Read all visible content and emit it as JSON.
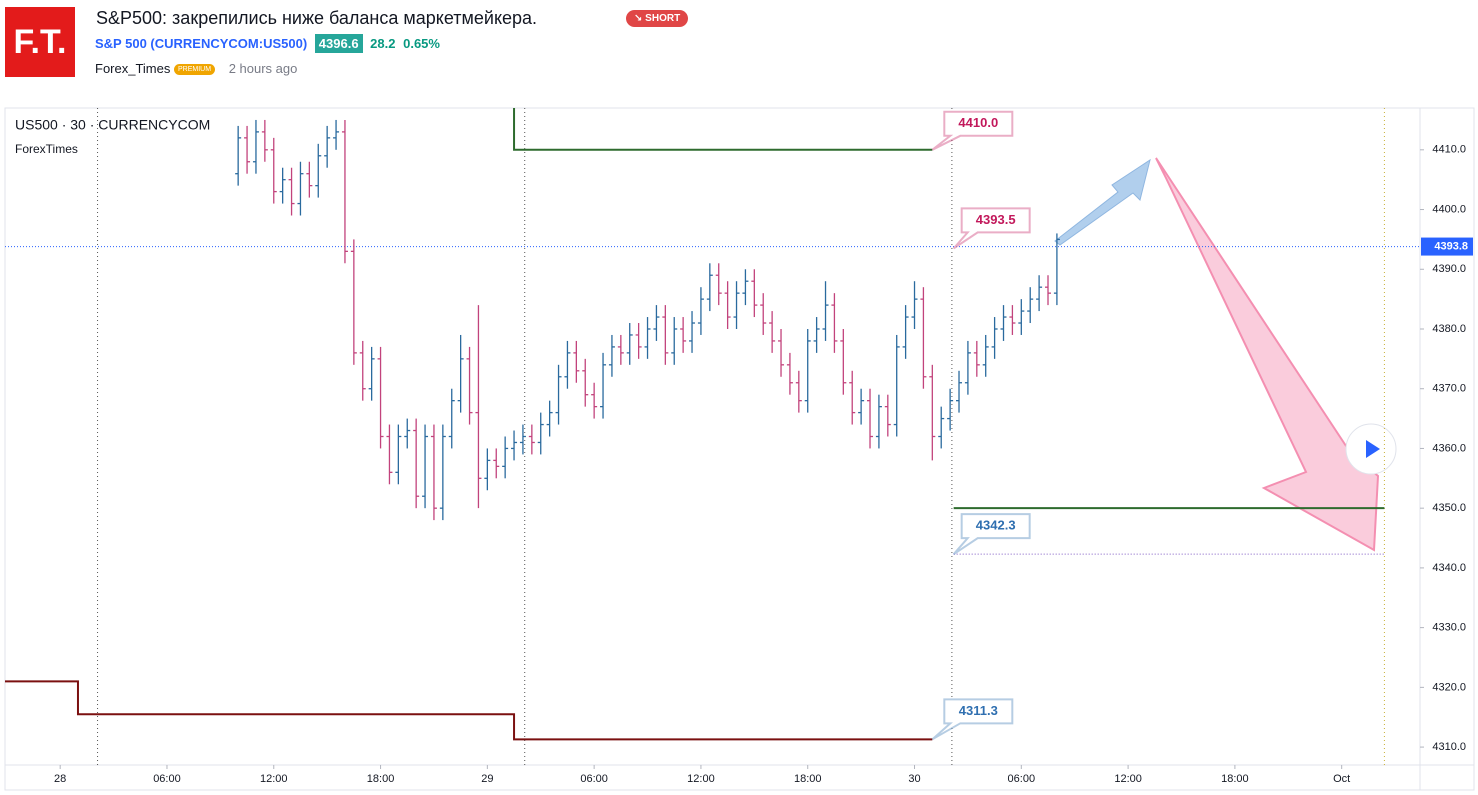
{
  "header": {
    "logo": "F.T.",
    "title": "S&P500: закрепились ниже баланса маркетмейкера.",
    "badge": "SHORT",
    "symbol": "S&P 500 (CURRENCYCOM:US500)",
    "price": "4396.6",
    "change": "28.2",
    "change_pct": "0.65%",
    "author": "Forex_Times",
    "author_badge": "PREMIUM",
    "time": "2 hours ago"
  },
  "chart_data": {
    "type": "ohlc",
    "title": "US500 · 30 · CURRENCYCOM",
    "subtitle": "ForexTimes",
    "up_color": "#2a6a9e",
    "down_color": "#c2437c",
    "xlim": [
      -3.1,
      76.4
    ],
    "ylim": [
      4307,
      4417
    ],
    "xticks": [
      {
        "value": 0,
        "label": "28"
      },
      {
        "value": 6,
        "label": "06:00"
      },
      {
        "value": 12,
        "label": "12:00"
      },
      {
        "value": 18,
        "label": "18:00"
      },
      {
        "value": 24,
        "label": "29"
      },
      {
        "value": 30,
        "label": "06:00"
      },
      {
        "value": 36,
        "label": "12:00"
      },
      {
        "value": 42,
        "label": "18:00"
      },
      {
        "value": 48,
        "label": "30"
      },
      {
        "value": 54,
        "label": "06:00"
      },
      {
        "value": 60,
        "label": "12:00"
      },
      {
        "value": 66,
        "label": "18:00"
      },
      {
        "value": 72,
        "label": "Oct"
      }
    ],
    "yticks": [
      {
        "value": 4310,
        "label": "4310.0"
      },
      {
        "value": 4320,
        "label": "4320.0"
      },
      {
        "value": 4330,
        "label": "4330.0"
      },
      {
        "value": 4340,
        "label": "4340.0"
      },
      {
        "value": 4350,
        "label": "4350.0"
      },
      {
        "value": 4360,
        "label": "4360.0"
      },
      {
        "value": 4370,
        "label": "4370.0"
      },
      {
        "value": 4380,
        "label": "4380.0"
      },
      {
        "value": 4390,
        "label": "4390.0"
      },
      {
        "value": 4400,
        "label": "4400.0"
      },
      {
        "value": 4410,
        "label": "4410.0"
      }
    ],
    "x": [
      10,
      10.5,
      11,
      11.5,
      12,
      12.5,
      13,
      13.5,
      14,
      14.5,
      15,
      15.5,
      16,
      16.5,
      17,
      17.5,
      18,
      18.5,
      19,
      19.5,
      20,
      20.5,
      21,
      21.5,
      22,
      22.5,
      23,
      23.5,
      24,
      24.5,
      25,
      25.5,
      26,
      26.5,
      27,
      27.5,
      28,
      28.5,
      29,
      29.5,
      30,
      30.5,
      31,
      31.5,
      32,
      32.5,
      33,
      33.5,
      34,
      34.5,
      35,
      35.5,
      36,
      36.5,
      37,
      37.5,
      38,
      38.5,
      39,
      39.5,
      40,
      40.5,
      41,
      41.5,
      42,
      42.5,
      43,
      43.5,
      44,
      44.5,
      45,
      45.5,
      46,
      46.5,
      47,
      47.5,
      48,
      48.5,
      49,
      49.5,
      50,
      50.5,
      51,
      51.5,
      52,
      52.5,
      53,
      53.5,
      54,
      54.5,
      55,
      55.5,
      56
    ],
    "open": [
      4406,
      4412,
      4408,
      4413,
      4410,
      4403,
      4405,
      4401,
      4406,
      4404,
      4409,
      4412,
      4413,
      4393,
      4376,
      4370,
      4375,
      4362,
      4356,
      4362,
      4363,
      4352,
      4362,
      4350,
      4362,
      4368,
      4375,
      4366,
      4355,
      4358,
      4357,
      4360,
      4361,
      4362,
      4361,
      4364,
      4366,
      4372,
      4376,
      4373,
      4369,
      4367,
      4374,
      4377,
      4376,
      4379,
      4377,
      4380,
      4382,
      4376,
      4380,
      4378,
      4381,
      4385,
      4389,
      4386,
      4382,
      4386,
      4388,
      4384,
      4381,
      4378,
      4374,
      4371,
      4368,
      4378,
      4380,
      4384,
      4378,
      4371,
      4366,
      4368,
      4362,
      4367,
      4364,
      4377,
      4382,
      4385,
      4372,
      4362,
      4365,
      4368,
      4371,
      4376,
      4374,
      4377,
      4380,
      4382,
      4381,
      4383,
      4385,
      4387,
      4386
    ],
    "high": [
      4414,
      4414,
      4415,
      4415,
      4412,
      4407,
      4407,
      4408,
      4408,
      4411,
      4414,
      4415,
      4415,
      4395,
      4378,
      4377,
      4377,
      4364,
      4364,
      4365,
      4365,
      4364,
      4364,
      4364,
      4370,
      4379,
      4377,
      4384,
      4360,
      4360,
      4362,
      4363,
      4364,
      4364,
      4366,
      4368,
      4374,
      4378,
      4378,
      4375,
      4371,
      4376,
      4379,
      4379,
      4381,
      4381,
      4382,
      4384,
      4384,
      4382,
      4382,
      4383,
      4387,
      4391,
      4391,
      4388,
      4388,
      4390,
      4390,
      4386,
      4383,
      4380,
      4376,
      4373,
      4380,
      4382,
      4388,
      4386,
      4380,
      4373,
      4370,
      4370,
      4369,
      4369,
      4379,
      4384,
      4388,
      4387,
      4374,
      4367,
      4370,
      4373,
      4378,
      4378,
      4379,
      4382,
      4384,
      4384,
      4385,
      4387,
      4389,
      4389,
      4396
    ],
    "low": [
      4404,
      4406,
      4406,
      4408,
      4401,
      4401,
      4399,
      4399,
      4402,
      4402,
      4407,
      4410,
      4391,
      4374,
      4368,
      4368,
      4360,
      4354,
      4354,
      4360,
      4350,
      4350,
      4348,
      4348,
      4360,
      4366,
      4364,
      4350,
      4353,
      4355,
      4355,
      4358,
      4359,
      4359,
      4359,
      4362,
      4364,
      4370,
      4371,
      4367,
      4365,
      4365,
      4372,
      4374,
      4374,
      4375,
      4375,
      4378,
      4374,
      4374,
      4376,
      4376,
      4379,
      4383,
      4384,
      4380,
      4380,
      4384,
      4382,
      4379,
      4376,
      4372,
      4369,
      4366,
      4366,
      4376,
      4378,
      4376,
      4369,
      4364,
      4364,
      4360,
      4360,
      4362,
      4362,
      4375,
      4380,
      4370,
      4358,
      4360,
      4363,
      4366,
      4369,
      4372,
      4372,
      4375,
      4378,
      4379,
      4379,
      4381,
      4383,
      4384,
      4384
    ],
    "close": [
      4412,
      4408,
      4413,
      4410,
      4403,
      4405,
      4401,
      4406,
      4404,
      4409,
      4412,
      4413,
      4393,
      4376,
      4370,
      4375,
      4362,
      4356,
      4362,
      4363,
      4352,
      4362,
      4350,
      4362,
      4368,
      4375,
      4366,
      4355,
      4358,
      4357,
      4360,
      4361,
      4362,
      4361,
      4364,
      4366,
      4372,
      4376,
      4373,
      4369,
      4367,
      4374,
      4377,
      4376,
      4379,
      4377,
      4380,
      4382,
      4376,
      4380,
      4378,
      4381,
      4385,
      4389,
      4386,
      4382,
      4386,
      4388,
      4384,
      4381,
      4378,
      4374,
      4371,
      4368,
      4378,
      4380,
      4384,
      4378,
      4371,
      4366,
      4368,
      4362,
      4367,
      4364,
      4377,
      4382,
      4385,
      4372,
      4362,
      4365,
      4368,
      4371,
      4376,
      4374,
      4377,
      4380,
      4382,
      4381,
      4383,
      4385,
      4387,
      4386,
      4395
    ],
    "lines": [
      {
        "x": [
          -3.1,
          1,
          1,
          25.5,
          25.5,
          49
        ],
        "values": [
          4321,
          4321,
          4315.5,
          4315.5,
          4311.3,
          4311.3
        ],
        "color": "#7b1010"
      },
      {
        "x": [
          25.5,
          25.5,
          49
        ],
        "values": [
          4417,
          4410,
          4410
        ],
        "color": "#2e6b2e"
      },
      {
        "x": [
          50.2,
          74.4
        ],
        "values": [
          4350,
          4350
        ],
        "color": "#2e6b2e"
      },
      {
        "x": [
          50.2,
          74.4
        ],
        "values": [
          4342.3,
          4342.3
        ],
        "color": "#7e57c2",
        "dashed": true
      }
    ],
    "session_lines": [
      2.1,
      26.1,
      50.1
    ],
    "period_end": 74.4,
    "last_price": {
      "value": 4393.8,
      "label": "4393.8"
    },
    "callouts": [
      {
        "label": "4410.0",
        "value": 4410,
        "x": 49,
        "color": "#c2185b"
      },
      {
        "label": "4393.5",
        "value": 4393.5,
        "x": 50.2,
        "color": "#c2185b"
      },
      {
        "label": "4342.3",
        "value": 4342.3,
        "x": 50.2,
        "color": "#2f6fb0"
      },
      {
        "label": "4311.3",
        "value": 4311.3,
        "x": 49,
        "color": "#2f6fb0"
      }
    ]
  }
}
